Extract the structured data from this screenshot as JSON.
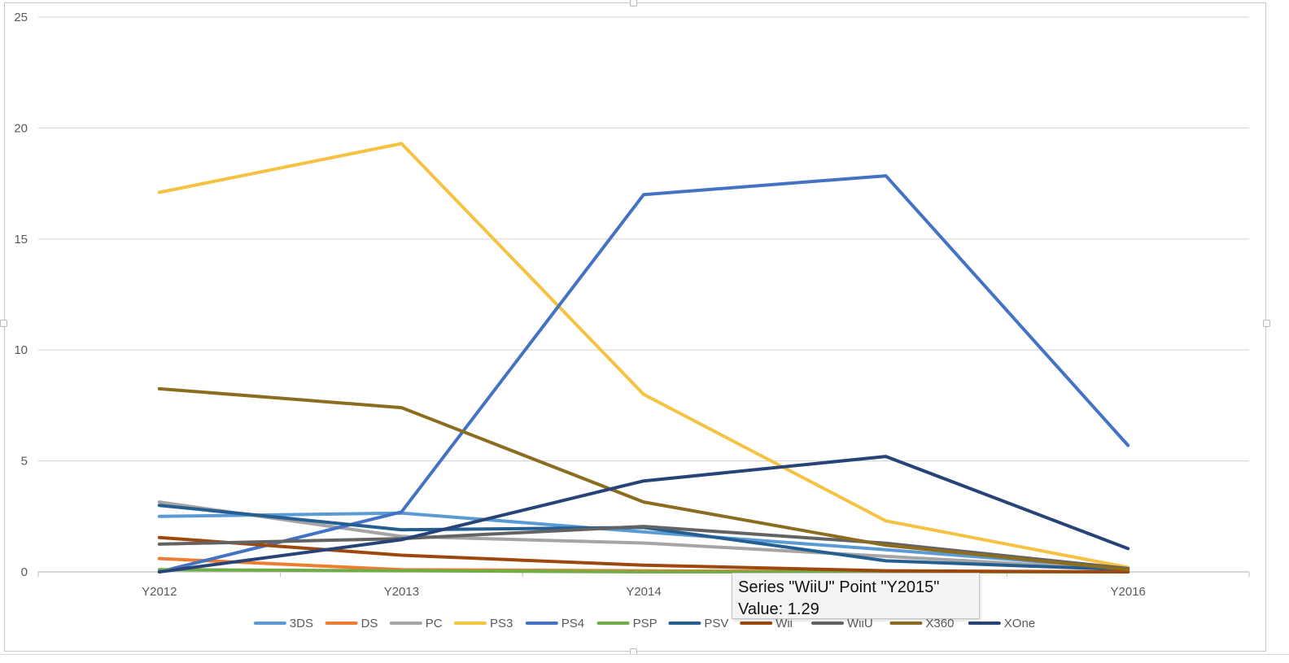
{
  "colors": {
    "grid": "#d9d9d9",
    "axis_text": "#595959"
  },
  "tooltip": {
    "line1": "Series \"WiiU\" Point \"Y2015\"",
    "line2": "Value: 1.29"
  },
  "chart_data": {
    "type": "line",
    "categories": [
      "Y2012",
      "Y2013",
      "Y2014",
      "Y2015",
      "Y2016"
    ],
    "x_tick_labels": [
      "Y2012",
      "Y2013",
      "Y2014",
      "",
      "Y2016"
    ],
    "ylim": [
      0,
      25
    ],
    "yticks": [
      0,
      5,
      10,
      15,
      20,
      25
    ],
    "grid": true,
    "legend_position": "bottom",
    "title": "",
    "xlabel": "",
    "ylabel": "",
    "series": [
      {
        "name": "3DS",
        "color": "#5b9bd5",
        "values": [
          2.5,
          2.65,
          1.8,
          1.0,
          0.15
        ]
      },
      {
        "name": "DS",
        "color": "#ed7d31",
        "values": [
          0.6,
          0.1,
          0.05,
          0.0,
          0.0
        ]
      },
      {
        "name": "PC",
        "color": "#a5a5a5",
        "values": [
          3.15,
          1.6,
          1.3,
          0.7,
          0.1
        ]
      },
      {
        "name": "PS3",
        "color": "#f5c242",
        "values": [
          17.1,
          19.3,
          8.0,
          2.3,
          0.2
        ]
      },
      {
        "name": "PS4",
        "color": "#4472c4",
        "values": [
          0.0,
          2.7,
          17.0,
          17.85,
          5.7
        ]
      },
      {
        "name": "PSP",
        "color": "#70ad47",
        "values": [
          0.1,
          0.05,
          0.0,
          0.0,
          0.0
        ]
      },
      {
        "name": "PSV",
        "color": "#255e91",
        "values": [
          3.0,
          1.9,
          2.0,
          0.5,
          0.1
        ]
      },
      {
        "name": "Wii",
        "color": "#9e480e",
        "values": [
          1.55,
          0.75,
          0.3,
          0.05,
          0.0
        ]
      },
      {
        "name": "WiiU",
        "color": "#636363",
        "values": [
          1.25,
          1.5,
          2.05,
          1.29,
          0.15
        ]
      },
      {
        "name": "X360",
        "color": "#8c6d1f",
        "values": [
          8.25,
          7.4,
          3.15,
          1.2,
          0.1
        ]
      },
      {
        "name": "XOne",
        "color": "#264478",
        "values": [
          0.0,
          1.45,
          4.1,
          5.2,
          1.05
        ]
      }
    ]
  }
}
